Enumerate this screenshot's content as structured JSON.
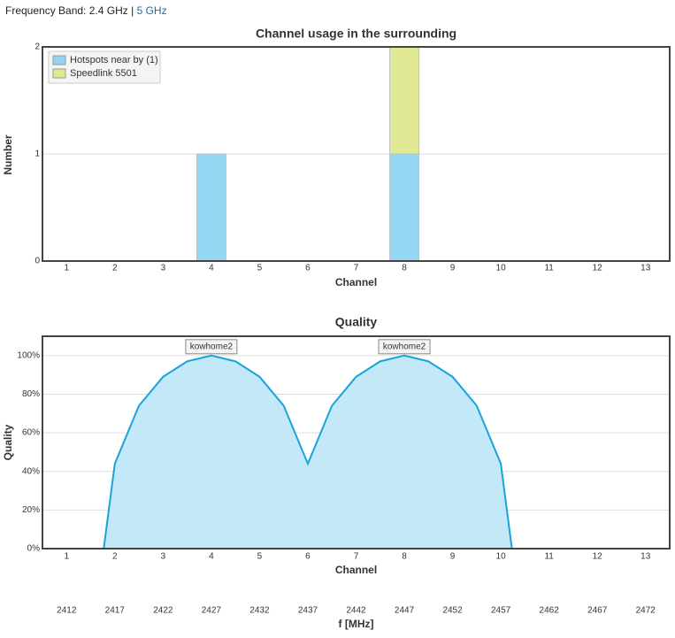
{
  "header": {
    "label": "Frequency Band:",
    "options": [
      "2.4 GHz",
      "5 GHz"
    ],
    "separator": "|"
  },
  "chart_data": [
    {
      "type": "bar",
      "stacked": true,
      "title": "Channel usage in the surrounding",
      "x_label": "Channel",
      "y_label": "Number",
      "categories": [
        "1",
        "2",
        "3",
        "4",
        "5",
        "6",
        "7",
        "8",
        "9",
        "10",
        "11",
        "12",
        "13"
      ],
      "series": [
        {
          "name": "Hotspots near by (1)",
          "color": "#8fd4f2",
          "values": [
            0,
            0,
            0,
            1,
            0,
            0,
            0,
            1,
            0,
            0,
            0,
            0,
            0
          ]
        },
        {
          "name": "Speedlink 5501",
          "color": "#dfe88f",
          "values": [
            0,
            0,
            0,
            0,
            0,
            0,
            0,
            1,
            0,
            0,
            0,
            0,
            0
          ]
        }
      ],
      "ylim": [
        0,
        2
      ],
      "yticks": [
        0,
        1,
        2
      ],
      "grid": true,
      "legend": "top-left"
    },
    {
      "type": "area",
      "title": "Quality",
      "x_label": "Channel",
      "y_label": "Quality",
      "x2_label": "f [MHz]",
      "x": [
        1.77,
        2,
        2.5,
        3,
        3.5,
        4,
        4.5,
        5,
        5.5,
        6,
        6.5,
        7,
        7.5,
        8,
        8.5,
        9,
        9.5,
        10,
        10.23
      ],
      "values": [
        0,
        44,
        74,
        89,
        97,
        100,
        97,
        89,
        74,
        44,
        74,
        89,
        97,
        100,
        97,
        89,
        74,
        44,
        0
      ],
      "color": "#1aa3d9",
      "fill": "#c3e8f8",
      "xlim": [
        0.5,
        13.5
      ],
      "xticks": [
        1,
        2,
        3,
        4,
        5,
        6,
        7,
        8,
        9,
        10,
        11,
        12,
        13
      ],
      "x2lim": [
        2409.5,
        2474.5
      ],
      "x2ticks": [
        2412,
        2417,
        2422,
        2427,
        2432,
        2437,
        2442,
        2447,
        2452,
        2457,
        2462,
        2467,
        2472
      ],
      "ylim": [
        0,
        110
      ],
      "yticks": [
        {
          "value": 0,
          "label": "0%"
        },
        {
          "value": 20,
          "label": "20%"
        },
        {
          "value": 40,
          "label": "40%"
        },
        {
          "value": 60,
          "label": "60%"
        },
        {
          "value": 80,
          "label": "80%"
        },
        {
          "value": 100,
          "label": "100%"
        }
      ],
      "grid": true,
      "annotations": [
        {
          "text": "kowhome2",
          "x": 4,
          "y": 100
        },
        {
          "text": "kowhome2",
          "x": 8,
          "y": 100
        }
      ]
    }
  ]
}
